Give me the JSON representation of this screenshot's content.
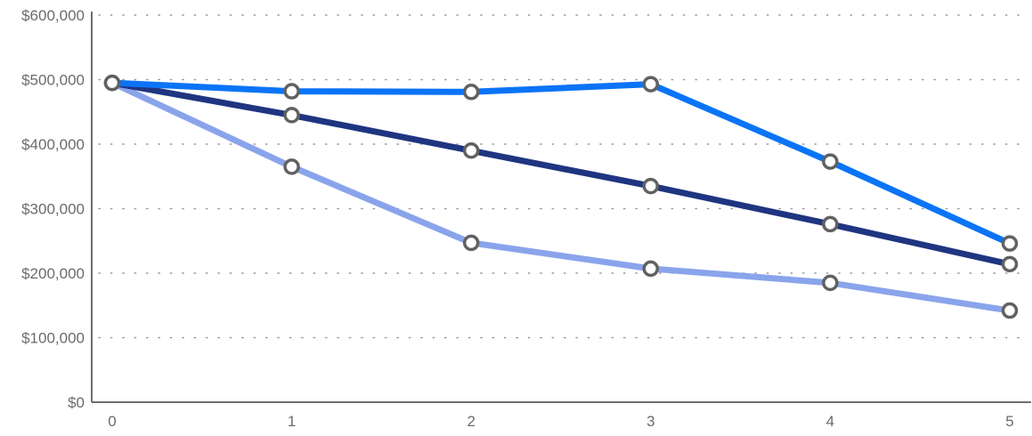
{
  "chart_data": {
    "type": "line",
    "title": "",
    "xlabel": "",
    "ylabel": "",
    "x": [
      0,
      1,
      2,
      3,
      4,
      5
    ],
    "x_tick_labels": [
      "0",
      "1",
      "2",
      "3",
      "4",
      "5"
    ],
    "y_ticks": [
      0,
      100000,
      200000,
      300000,
      400000,
      500000,
      600000
    ],
    "y_tick_labels": [
      "$0",
      "$100,000",
      "$200,000",
      "$300,000",
      "$400,000",
      "$500,000",
      "$600,000"
    ],
    "ylim": [
      0,
      600000
    ],
    "grid": "horizontal dotted",
    "legend": "none",
    "series": [
      {
        "color": "#8aa4ec",
        "values": [
          495000,
          365000,
          247000,
          207000,
          185000,
          142000
        ]
      },
      {
        "color": "#1f3580",
        "values": [
          495000,
          445000,
          390000,
          335000,
          276000,
          214000
        ]
      },
      {
        "color": "#0b74f6",
        "values": [
          495000,
          482000,
          481000,
          493000,
          373000,
          246000
        ]
      }
    ],
    "marker_style": {
      "fill": "#ffffff",
      "stroke": "#616161"
    }
  }
}
